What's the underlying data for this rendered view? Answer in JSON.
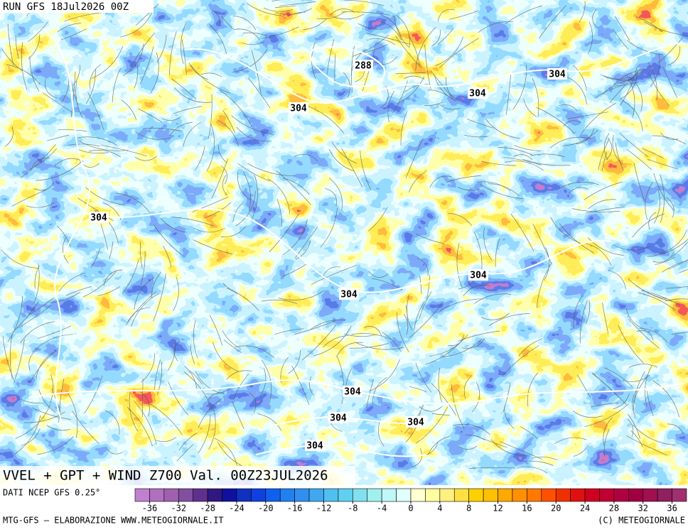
{
  "header": {
    "run": "RUN GFS 18Jul2026 00Z"
  },
  "map": {
    "title": "VVEL + GPT + WIND Z700 Val. 00Z23JUL2026",
    "contour_labels": [
      "288",
      "304",
      "304",
      "304",
      "304",
      "304",
      "304",
      "304",
      "304",
      "304",
      "304"
    ]
  },
  "colorbar": {
    "source": "DATI NCEP GFS 0.25°",
    "lim": [
      -38,
      38
    ],
    "ticks": [
      -36,
      -32,
      -28,
      -24,
      -20,
      -16,
      -12,
      -8,
      -4,
      0,
      4,
      8,
      12,
      16,
      20,
      24,
      28,
      32,
      36
    ],
    "colors": [
      "#c080d0",
      "#b070c0",
      "#a060b0",
      "#8050a0",
      "#603090",
      "#301880",
      "#1010a0",
      "#1030c0",
      "#1040e0",
      "#1060f0",
      "#2080f0",
      "#3090f0",
      "#40a8f0",
      "#50c0f0",
      "#60d0f0",
      "#80e0f0",
      "#a0f0f0",
      "#c0f8f8",
      "#e0ffff",
      "#ffffd0",
      "#ffffa0",
      "#fff080",
      "#ffe040",
      "#ffd000",
      "#ffc000",
      "#ffa800",
      "#ff9000",
      "#ff7800",
      "#ff5000",
      "#f03000",
      "#e01010",
      "#d00020",
      "#c00030",
      "#b00040",
      "#a00040",
      "#a01050",
      "#902060",
      "#a03070"
    ]
  },
  "footer": {
    "credit": "MTG-GFS — ELABORAZIONE WWW.METEOGIORNALE.IT",
    "copyright": "(C) METEOGIORNALE"
  }
}
